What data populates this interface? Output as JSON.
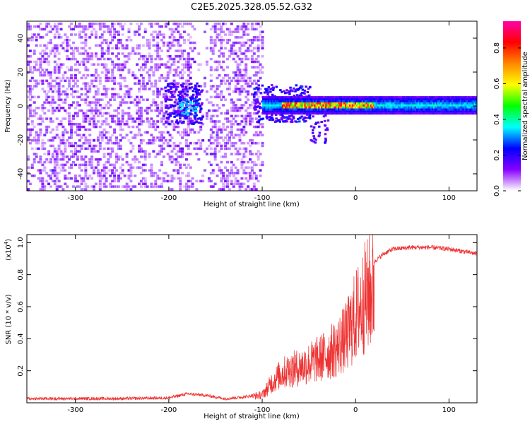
{
  "title": "C2E5.2025.328.05.52.G32",
  "colors": {
    "snr_line": "#ee3333",
    "spectrogram_base": "#6a1de0",
    "axis": "#000000",
    "background": "#ffffff"
  },
  "chart_data": [
    {
      "type": "heatmap",
      "name": "spectrogram",
      "xlabel": "Height of straight line (km)",
      "ylabel": "Frequency (Hz)",
      "xlim": [
        -352,
        130
      ],
      "ylim": [
        -50,
        50
      ],
      "xticks": [
        -300,
        -200,
        -100,
        0,
        100
      ],
      "xtick_labels": [
        "-300",
        "-200",
        "-100",
        "0",
        "100"
      ],
      "yticks": [
        -40,
        -20,
        0,
        20,
        40
      ],
      "ytick_labels": [
        "-40",
        "-20",
        "0",
        "20",
        "40"
      ],
      "noise_region_x": [
        -352,
        -100
      ],
      "bright_band_frequency": 0,
      "colorbar": {
        "label": "Normalized spectral amplitude",
        "range": [
          0,
          0.95
        ],
        "ticks": [
          0.0,
          0.2,
          0.4,
          0.6,
          0.8
        ],
        "tick_labels": [
          "0.0",
          "0.2",
          "0.4",
          "0.6",
          "0.8"
        ],
        "colormap": [
          "#ffffff",
          "#8800ff",
          "#0000ff",
          "#00ffff",
          "#00ff00",
          "#ffff00",
          "#ff8800",
          "#ff0000",
          "#ff00aa"
        ]
      }
    },
    {
      "type": "line",
      "name": "snr",
      "xlabel": "Height of straight line (km)",
      "ylabel": "SNR (10 * v/v)",
      "y_multiplier": "(x10",
      "y_multiplier_exp": "4",
      "xlim": [
        -352,
        130
      ],
      "ylim": [
        0,
        1.05
      ],
      "xticks": [
        -300,
        -200,
        -100,
        0,
        100
      ],
      "xtick_labels": [
        "-300",
        "-200",
        "-100",
        "0",
        "100"
      ],
      "yticks": [
        0.2,
        0.4,
        0.6,
        0.8,
        1.0
      ],
      "ytick_labels": [
        "0.2",
        "0.4",
        "0.6",
        "0.8",
        "1.0"
      ],
      "envelope": {
        "x": [
          -352,
          -300,
          -250,
          -200,
          -180,
          -160,
          -140,
          -120,
          -100,
          -90,
          -80,
          -70,
          -60,
          -50,
          -40,
          -30,
          -20,
          -10,
          0,
          10,
          20,
          30,
          40,
          60,
          80,
          100,
          120,
          130
        ],
        "y": [
          0.03,
          0.03,
          0.03,
          0.035,
          0.06,
          0.05,
          0.03,
          0.04,
          0.06,
          0.15,
          0.22,
          0.25,
          0.27,
          0.3,
          0.33,
          0.37,
          0.42,
          0.5,
          0.66,
          0.8,
          0.88,
          0.93,
          0.96,
          0.97,
          0.97,
          0.96,
          0.94,
          0.93
        ]
      }
    }
  ]
}
